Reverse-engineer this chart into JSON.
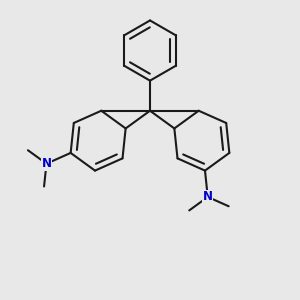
{
  "background_color": "#e8e8e8",
  "bond_color": "#1a1a1a",
  "nitrogen_color": "#0000cc",
  "bond_width": 1.5,
  "figsize": [
    3.0,
    3.0
  ],
  "dpi": 100
}
